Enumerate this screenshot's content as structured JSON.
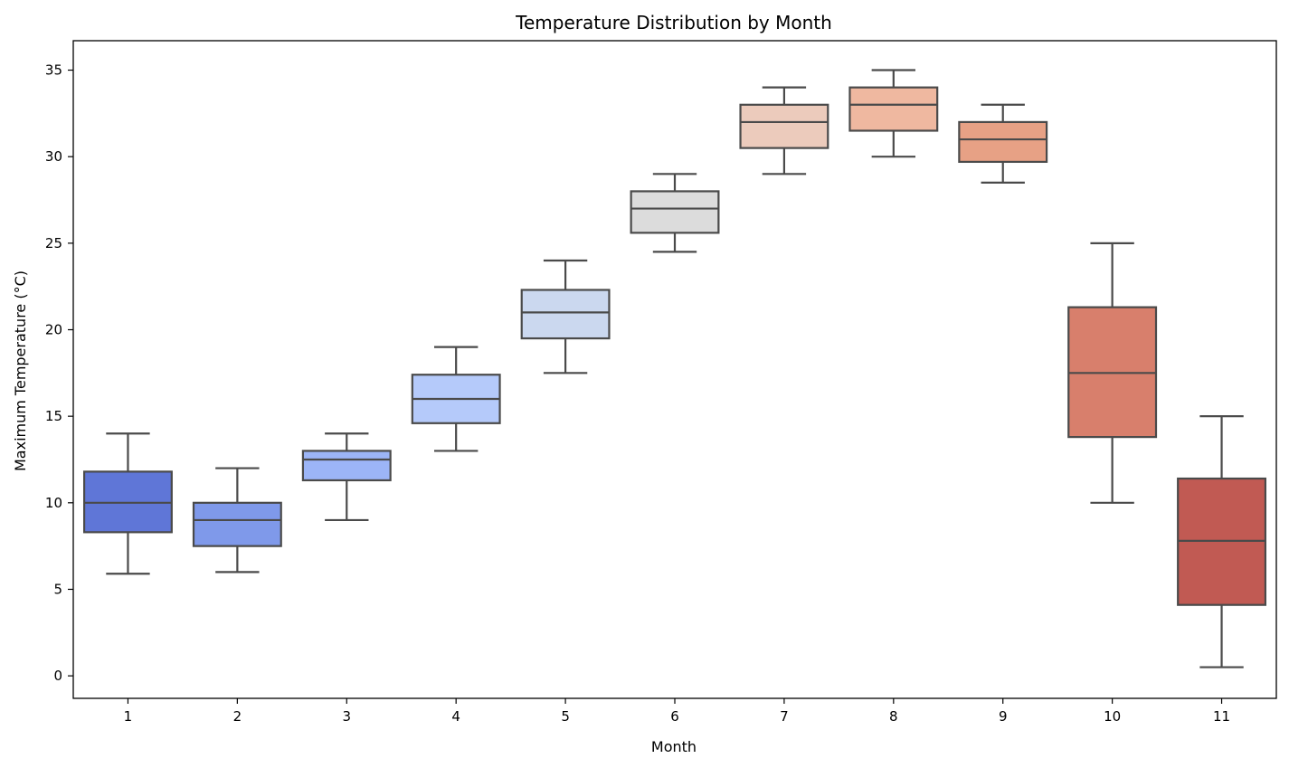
{
  "chart_data": {
    "type": "box",
    "title": "Temperature Distribution by Month",
    "xlabel": "Month",
    "ylabel": "Maximum Temperature (°C)",
    "categories": [
      "1",
      "2",
      "3",
      "4",
      "5",
      "6",
      "7",
      "8",
      "9",
      "10",
      "11"
    ],
    "ylim": [
      -1.3,
      36.7
    ],
    "yticks": [
      "0",
      "5",
      "10",
      "15",
      "20",
      "25",
      "30",
      "35"
    ],
    "grid": false,
    "boxes": [
      {
        "month": "1",
        "whisker_low": 5.9,
        "q1": 8.3,
        "median": 10.0,
        "q3": 11.8,
        "whisker_high": 14.0,
        "color": "#5f76d7"
      },
      {
        "month": "2",
        "whisker_low": 6.0,
        "q1": 7.5,
        "median": 9.0,
        "q3": 10.0,
        "whisker_high": 12.0,
        "color": "#7f99ea"
      },
      {
        "month": "3",
        "whisker_low": 9.0,
        "q1": 11.3,
        "median": 12.5,
        "q3": 13.0,
        "whisker_high": 14.0,
        "color": "#9cb5f7"
      },
      {
        "month": "4",
        "whisker_low": 13.0,
        "q1": 14.6,
        "median": 16.0,
        "q3": 17.4,
        "whisker_high": 19.0,
        "color": "#b5cafa"
      },
      {
        "month": "5",
        "whisker_low": 17.5,
        "q1": 19.5,
        "median": 21.0,
        "q3": 22.3,
        "whisker_high": 24.0,
        "color": "#cbd8ef"
      },
      {
        "month": "6",
        "whisker_low": 24.5,
        "q1": 25.6,
        "median": 27.0,
        "q3": 28.0,
        "whisker_high": 29.0,
        "color": "#dcdcdc"
      },
      {
        "month": "7",
        "whisker_low": 29.0,
        "q1": 30.5,
        "median": 32.0,
        "q3": 33.0,
        "whisker_high": 34.0,
        "color": "#eccbbc"
      },
      {
        "month": "8",
        "whisker_low": 30.0,
        "q1": 31.5,
        "median": 33.0,
        "q3": 34.0,
        "whisker_high": 35.0,
        "color": "#efb8a0"
      },
      {
        "month": "9",
        "whisker_low": 28.5,
        "q1": 29.7,
        "median": 31.0,
        "q3": 32.0,
        "whisker_high": 33.0,
        "color": "#e7a185"
      },
      {
        "month": "10",
        "whisker_low": 10.0,
        "q1": 13.8,
        "median": 17.5,
        "q3": 21.3,
        "whisker_high": 25.0,
        "color": "#d87f6c"
      },
      {
        "month": "11",
        "whisker_low": 0.5,
        "q1": 4.1,
        "median": 7.8,
        "q3": 11.4,
        "whisker_high": 15.0,
        "color": "#c15a53"
      }
    ],
    "line_color": "#4a4a4a"
  }
}
